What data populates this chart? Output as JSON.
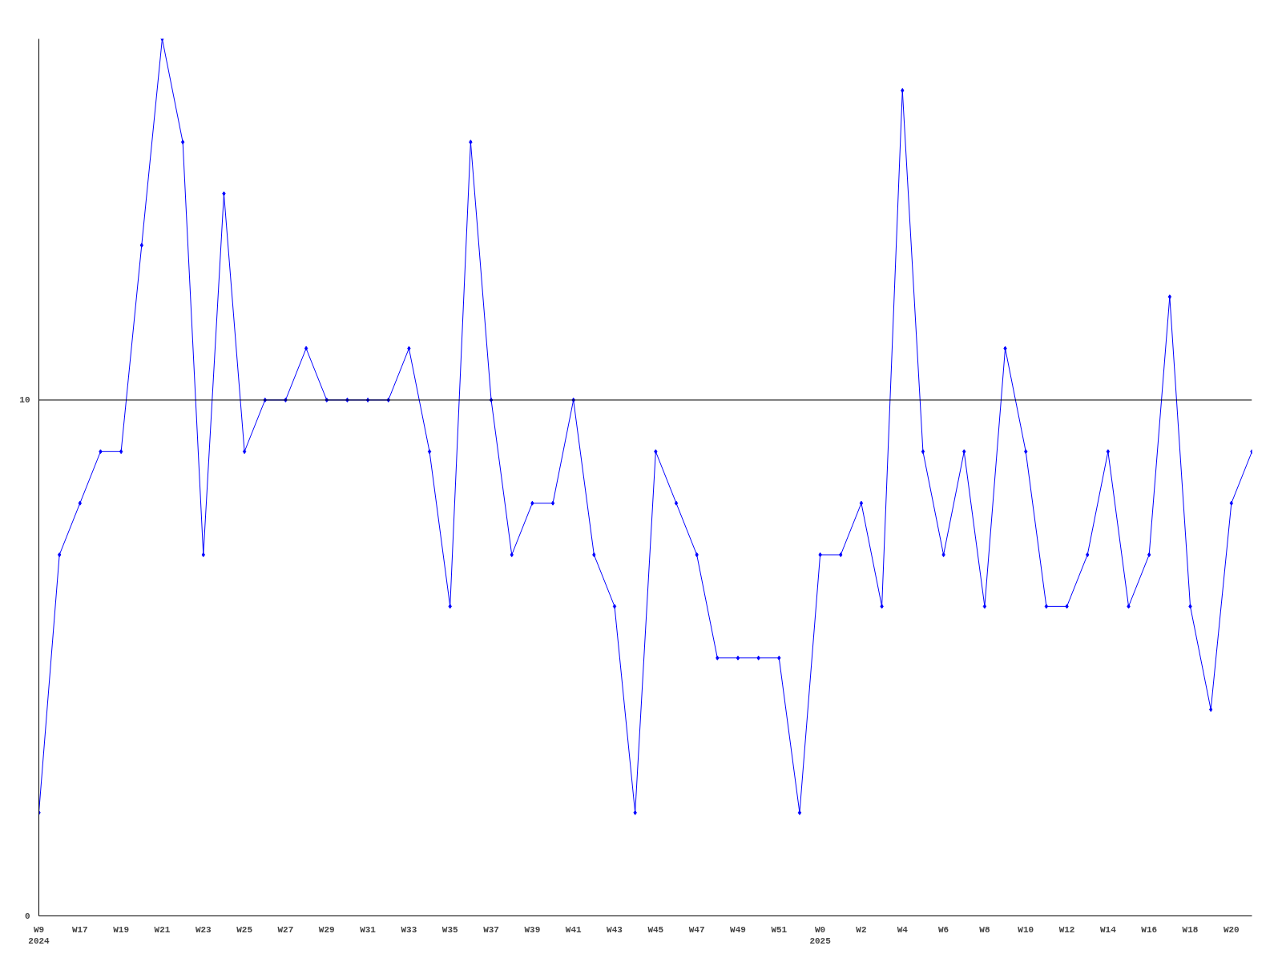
{
  "chart_data": {
    "type": "line",
    "categories": [
      "W9\n2024",
      null,
      "W17",
      null,
      "W19",
      null,
      "W21",
      null,
      "W23",
      null,
      "W25",
      null,
      "W27",
      null,
      "W29",
      null,
      "W31",
      null,
      "W33",
      null,
      "W35",
      null,
      "W37",
      null,
      "W39",
      null,
      "W41",
      null,
      "W43",
      null,
      "W45",
      null,
      "W47",
      null,
      "W49",
      null,
      "W51",
      null,
      "W0\n2025",
      null,
      "W2",
      null,
      "W4",
      null,
      "W6",
      null,
      "W8",
      null,
      "W10",
      null,
      "W12",
      null,
      "W14",
      null,
      "W16",
      null,
      "W18",
      null,
      "W20",
      null
    ],
    "series": [
      {
        "color": "#0000ff",
        "values": [
          2,
          7,
          8,
          9,
          9,
          13,
          17,
          15,
          7,
          14,
          9,
          10,
          10,
          11,
          10,
          10,
          10,
          10,
          11,
          9,
          6,
          15,
          10,
          7,
          8,
          8,
          10,
          7,
          6,
          2,
          9,
          8,
          7,
          5,
          5,
          5,
          5,
          2,
          7,
          7,
          8,
          6,
          16,
          9,
          7,
          9,
          6,
          11,
          9,
          6,
          6,
          7,
          9,
          6,
          7,
          12,
          6,
          4,
          8,
          9
        ]
      }
    ],
    "ylim": [
      0,
      17
    ],
    "yticks": [
      0,
      10
    ],
    "ref_lines": [
      {
        "axis": "y",
        "value": 10,
        "color": "#000000"
      }
    ],
    "marker": "diamond",
    "line_style": "solid",
    "grid": false
  }
}
